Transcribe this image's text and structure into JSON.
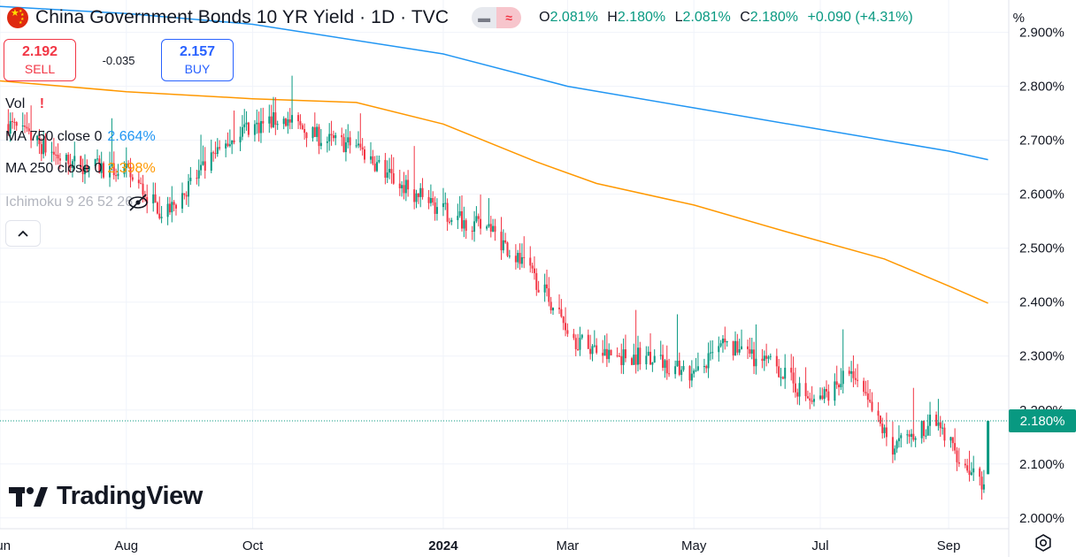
{
  "header": {
    "title": "China Government Bonds 10 YR Yield · 1D · TVC",
    "flag_icon": "china-flag-icon",
    "pill_left_icon": "minus-icon",
    "pill_right_icon": "approx-icon",
    "ohlc": {
      "o_label": "O",
      "o_value": "2.081%",
      "h_label": "H",
      "h_value": "2.180%",
      "l_label": "L",
      "l_value": "2.081%",
      "c_label": "C",
      "c_value": "2.180%",
      "change": "+0.090 (+4.31%)"
    }
  },
  "trade": {
    "sell_value": "2.192",
    "sell_label": "SELL",
    "spread": "-0.035",
    "buy_value": "2.157",
    "buy_label": "BUY"
  },
  "legend": {
    "vol": "Vol",
    "vol_warning": "!",
    "ma750_label": "MA 750 close 0",
    "ma750_value": "2.664%",
    "ma250_label": "MA 250 close 0",
    "ma250_value": "2.398%",
    "ichimoku_label": "Ichimoku 9 26 52 26",
    "hidden_icon": "eye-crossed-icon",
    "collapse_icon": "chevron-up-icon"
  },
  "axis": {
    "unit": "%",
    "current_label": "2.180%",
    "settings_icon": "gear-icon",
    "logo_text": "TradingView"
  },
  "colors": {
    "up": "#089981",
    "down": "#f23645",
    "ma750": "#2196f3",
    "ma250": "#ff9800",
    "grid": "#f0f3fa"
  },
  "chart_data": {
    "type": "candlestick",
    "ylabel": "%",
    "ylim": [
      1.98,
      2.96
    ],
    "yticks": [
      "2.000%",
      "2.100%",
      "2.200%",
      "2.300%",
      "2.400%",
      "2.500%",
      "2.600%",
      "2.700%",
      "2.800%",
      "2.900%"
    ],
    "yticks_values": [
      2.0,
      2.1,
      2.2,
      2.3,
      2.4,
      2.5,
      2.6,
      2.7,
      2.8,
      2.9
    ],
    "x_range": [
      "2023-06-01",
      "2024-09-30"
    ],
    "xticks": [
      {
        "date": "2023-06-01",
        "label": "Jun"
      },
      {
        "date": "2023-08-01",
        "label": "Aug"
      },
      {
        "date": "2023-10-01",
        "label": "Oct"
      },
      {
        "date": "2024-01-01",
        "label": "2024"
      },
      {
        "date": "2024-03-01",
        "label": "Mar"
      },
      {
        "date": "2024-05-01",
        "label": "May"
      },
      {
        "date": "2024-07-01",
        "label": "Jul"
      },
      {
        "date": "2024-09-01",
        "label": "Sep"
      }
    ],
    "price_path": [
      [
        "2023-06-05",
        2.73
      ],
      [
        "2023-07-03",
        2.66
      ],
      [
        "2023-08-01",
        2.64
      ],
      [
        "2023-08-20",
        2.56
      ],
      [
        "2023-09-01",
        2.62
      ],
      [
        "2023-09-25",
        2.72
      ],
      [
        "2023-10-15",
        2.74
      ],
      [
        "2023-11-05",
        2.7
      ],
      [
        "2023-11-20",
        2.69
      ],
      [
        "2023-12-10",
        2.62
      ],
      [
        "2024-01-05",
        2.56
      ],
      [
        "2024-01-25",
        2.53
      ],
      [
        "2024-02-15",
        2.44
      ],
      [
        "2024-03-05",
        2.33
      ],
      [
        "2024-03-20",
        2.3
      ],
      [
        "2024-04-10",
        2.3
      ],
      [
        "2024-05-01",
        2.26
      ],
      [
        "2024-05-15",
        2.32
      ],
      [
        "2024-06-10",
        2.28
      ],
      [
        "2024-06-28",
        2.21
      ],
      [
        "2024-07-15",
        2.27
      ],
      [
        "2024-08-05",
        2.13
      ],
      [
        "2024-08-25",
        2.18
      ],
      [
        "2024-09-05",
        2.12
      ],
      [
        "2024-09-18",
        2.05
      ],
      [
        "2024-09-20",
        2.18
      ]
    ],
    "last_candle": {
      "date": "2024-09-20",
      "open": 2.081,
      "high": 2.18,
      "low": 2.081,
      "close": 2.18
    },
    "series": [
      {
        "name": "MA 750 close 0",
        "color": "#2196f3",
        "points": [
          [
            "2023-06-01",
            2.948
          ],
          [
            "2023-08-01",
            2.935
          ],
          [
            "2023-10-01",
            2.915
          ],
          [
            "2024-01-01",
            2.86
          ],
          [
            "2024-03-01",
            2.8
          ],
          [
            "2024-05-01",
            2.76
          ],
          [
            "2024-07-01",
            2.72
          ],
          [
            "2024-09-01",
            2.68
          ],
          [
            "2024-09-20",
            2.664
          ]
        ]
      },
      {
        "name": "MA 250 close 0",
        "color": "#ff9800",
        "points": [
          [
            "2023-06-01",
            2.81
          ],
          [
            "2023-08-01",
            2.79
          ],
          [
            "2023-10-01",
            2.777
          ],
          [
            "2023-11-20",
            2.77
          ],
          [
            "2024-01-01",
            2.73
          ],
          [
            "2024-02-15",
            2.66
          ],
          [
            "2024-03-15",
            2.62
          ],
          [
            "2024-05-01",
            2.58
          ],
          [
            "2024-06-15",
            2.53
          ],
          [
            "2024-08-01",
            2.48
          ],
          [
            "2024-09-01",
            2.43
          ],
          [
            "2024-09-20",
            2.398
          ]
        ]
      }
    ],
    "grid": true,
    "legend_position": "top-left"
  }
}
